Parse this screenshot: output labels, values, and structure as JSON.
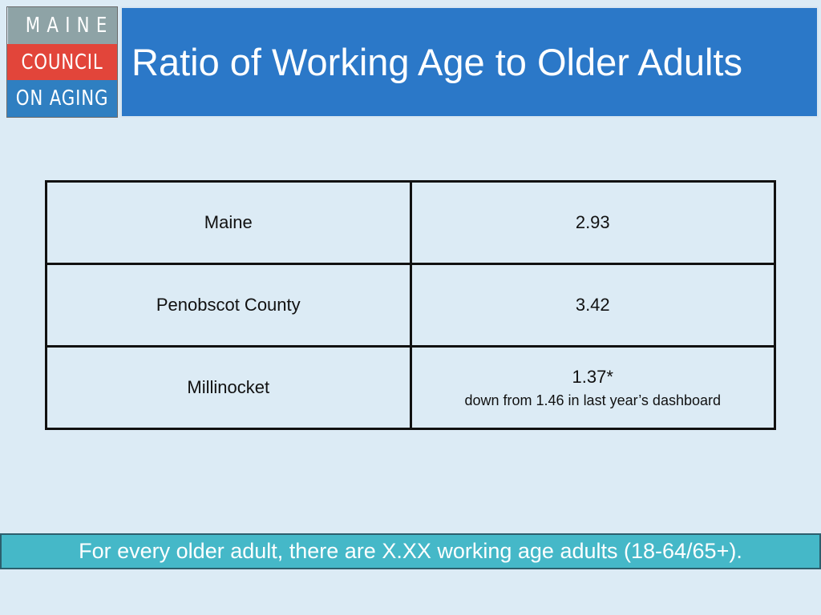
{
  "logo": {
    "line1": "MAINE",
    "line2": "COUNCIL",
    "line3": "ON AGING",
    "colors": {
      "top": "#8ea3a6",
      "middle": "#e2453a",
      "bottom": "#2f7fc1"
    }
  },
  "header": {
    "title": "Ratio of Working Age to Older Adults"
  },
  "table": {
    "rows": [
      {
        "region": "Maine",
        "ratio": "2.93",
        "note": ""
      },
      {
        "region": "Penobscot County",
        "ratio": "3.42",
        "note": ""
      },
      {
        "region": "Millinocket",
        "ratio": "1.37*",
        "note": "down from 1.46 in last year’s dashboard"
      }
    ]
  },
  "footer": {
    "text": "For every older adult, there are X.XX working age adults (18-64/65+)."
  },
  "colors": {
    "background": "#dcebf5",
    "title_bar": "#2b78c8",
    "footer_bar": "#45b8c8"
  }
}
